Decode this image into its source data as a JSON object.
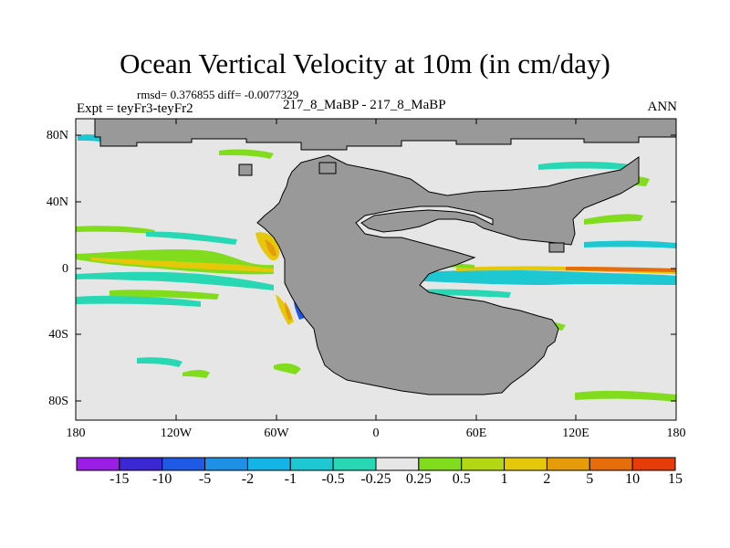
{
  "title": "Ocean Vertical Velocity at 10m (in cm/day)",
  "stats_line": "rmsd= 0.376855 diff= -0.0077329",
  "left_subtitle": "Expt = teyFr3-teyFr2",
  "center_subtitle": "217_8_MaBP - 217_8_MaBP",
  "right_subtitle": "ANN",
  "lat_labels": [
    "80N",
    "40N",
    "0",
    "40S",
    "80S"
  ],
  "lon_labels": [
    "180",
    "120W",
    "60W",
    "0",
    "60E",
    "120E",
    "180"
  ],
  "colorbar": {
    "labels": [
      "-15",
      "-10",
      "-5",
      "-2",
      "-1",
      "-0.5",
      "-0.25",
      "0.25",
      "0.5",
      "1",
      "2",
      "5",
      "10",
      "15"
    ],
    "colors": [
      "#9b1ee6",
      "#3c28d2",
      "#1e5ae6",
      "#1e91e6",
      "#14b4e6",
      "#1ec8d2",
      "#28d7b4",
      "#e6e6e6",
      "#82dc1e",
      "#b4d714",
      "#e6c80a",
      "#e69b0a",
      "#e66e0a",
      "#e63c0a"
    ]
  },
  "colors": {
    "land": "#999999",
    "ocean_zero": "#e6e6e6",
    "frame": "#000000"
  }
}
